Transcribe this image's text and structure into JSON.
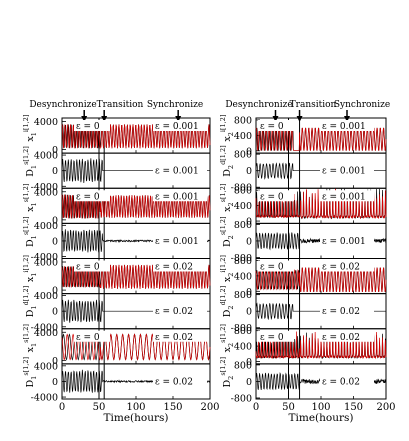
{
  "stage_labels": [
    "Desynchronize",
    "Transition",
    "Synchronize"
  ],
  "colors": {
    "black": "#000000",
    "red": "#d40000"
  },
  "chart_data": [
    {
      "type": "line",
      "x_label": "Time(hours)",
      "x_ticks": [
        0,
        50,
        100,
        150,
        200
      ],
      "xlim": [
        0,
        200
      ],
      "markers": [
        30,
        57,
        157
      ],
      "vlines": [
        50,
        57
      ],
      "panels": [
        {
          "ylabel": "x",
          "ylabel_sup": "i[1,2]",
          "ylabel_sub": "1",
          "eps_left": "ε = 0",
          "eps_right": "ε = 0.001",
          "ylim": [
            -500,
            4500
          ],
          "ticks": [
            0,
            4000
          ],
          "kind": "pair",
          "period": 3.8,
          "amp_before": 1700,
          "amp_after": 1700,
          "center": 1900,
          "t_switch": 52,
          "phase": 0
        },
        {
          "ylabel": "D",
          "ylabel_sup": "s[1,2]",
          "ylabel_sub": "1",
          "eps_left": "",
          "eps_right": "ε = 0.001",
          "ylim": [
            -4500,
            4500
          ],
          "ticks": [
            -4000,
            0,
            4000
          ],
          "kind": "diff",
          "period": 3.8,
          "amp_before": 3200,
          "amp_after": 0,
          "t_switch": 55
        },
        {
          "ylabel": "x",
          "ylabel_sup": "s[1,2]",
          "ylabel_sub": "1",
          "eps_left": "ε = 0",
          "eps_right": "ε = 0.001",
          "ylim": [
            -500,
            4500
          ],
          "ticks": [
            0,
            4000
          ],
          "kind": "pair",
          "period": 3.6,
          "amp_before": 1700,
          "amp_after": 1600,
          "center": 1900,
          "t_switch": 52,
          "phase": 1
        },
        {
          "ylabel": "D",
          "ylabel_sup": "s[1,2]",
          "ylabel_sub": "1",
          "eps_left": "",
          "eps_right": "ε = 0.001",
          "ylim": [
            -4500,
            4500
          ],
          "ticks": [
            -4000,
            0,
            4000
          ],
          "kind": "diff",
          "period": 3.6,
          "amp_before": 3000,
          "amp_after": 250,
          "t_switch": 55
        },
        {
          "ylabel": "x",
          "ylabel_sup": "i[1,2]",
          "ylabel_sub": "1",
          "eps_left": "ε = 0",
          "eps_right": "ε = 0.02",
          "ylim": [
            -500,
            4500
          ],
          "ticks": [
            0,
            4000
          ],
          "kind": "pair",
          "period": 3.8,
          "amp_before": 1500,
          "amp_after": 1700,
          "center": 1900,
          "t_switch": 52,
          "phase": 2
        },
        {
          "ylabel": "D",
          "ylabel_sup": "d[1,2]",
          "ylabel_sub": "1",
          "eps_left": "",
          "eps_right": "ε = 0.02",
          "ylim": [
            -4500,
            4500
          ],
          "ticks": [
            -4000,
            0,
            4000
          ],
          "kind": "diff",
          "period": 3.8,
          "amp_before": 3000,
          "amp_after": 0,
          "t_switch": 55
        },
        {
          "ylabel": "x",
          "ylabel_sup": "s[1,2]",
          "ylabel_sub": "1",
          "eps_left": "ε = 0",
          "eps_right": "ε = 0.02",
          "ylim": [
            -500,
            4500
          ],
          "ticks": [
            0,
            4000
          ],
          "kind": "pair",
          "period": 8,
          "amp_before": 1800,
          "amp_after": 1800,
          "center": 1900,
          "t_switch": 52,
          "phase": 3
        },
        {
          "ylabel": "D",
          "ylabel_sup": "s[1,2]",
          "ylabel_sub": "1",
          "eps_left": "",
          "eps_right": "ε = 0.02",
          "ylim": [
            -4500,
            4500
          ],
          "ticks": [
            -4000,
            0,
            4000
          ],
          "kind": "diff",
          "period": 3.8,
          "amp_before": 3000,
          "amp_after": 250,
          "t_switch": 55
        }
      ]
    },
    {
      "type": "line",
      "x_label": "Time(hours)",
      "x_ticks": [
        0,
        50,
        100,
        150,
        200
      ],
      "xlim": [
        0,
        200
      ],
      "markers": [
        30,
        67,
        140
      ],
      "vlines": [
        50,
        67
      ],
      "panels": [
        {
          "ylabel": "x",
          "ylabel_sup": "i[1,2]",
          "ylabel_sub": "2",
          "eps_left": "ε = 0",
          "eps_right": "ε = 0.001",
          "ylim": [
            -60,
            850
          ],
          "ticks": [
            0,
            400,
            800
          ],
          "kind": "pair",
          "period": 5,
          "amp_before": 300,
          "amp_after": 300,
          "center": 300,
          "t_switch": 67,
          "phase": 0,
          "gap": [
            57,
            67
          ]
        },
        {
          "ylabel": "D",
          "ylabel_sup": "d[1,2]",
          "ylabel_sub": "2",
          "eps_left": "",
          "eps_right": "ε = 0.001",
          "ylim": [
            -850,
            850
          ],
          "ticks": [
            -800,
            0,
            800
          ],
          "kind": "diff",
          "period": 5,
          "amp_before": 400,
          "amp_after": 0,
          "t_switch": 57
        },
        {
          "ylabel": "x",
          "ylabel_sup": "s[1,2]",
          "ylabel_sub": "2",
          "eps_left": "ε = 0",
          "eps_right": "ε = 0.001",
          "ylim": [
            -60,
            850
          ],
          "ticks": [
            0,
            400,
            800
          ],
          "kind": "spiky",
          "period": 4.5,
          "amp_before": 300,
          "amp_after": 350,
          "center": 200,
          "t_switch": 67,
          "phase": 1
        },
        {
          "ylabel": "D",
          "ylabel_sup": "s[1,2]",
          "ylabel_sub": "2",
          "eps_left": "",
          "eps_right": "ε = 0.001",
          "ylim": [
            -850,
            850
          ],
          "ticks": [
            -800,
            0,
            800
          ],
          "kind": "diff",
          "period": 4.5,
          "amp_before": 420,
          "amp_after": 120,
          "t_switch": 67
        },
        {
          "ylabel": "x",
          "ylabel_sup": "i[1,2]",
          "ylabel_sub": "2",
          "eps_left": "ε = 0",
          "eps_right": "ε = 0.02",
          "ylim": [
            -60,
            850
          ],
          "ticks": [
            0,
            400,
            800
          ],
          "kind": "pair",
          "period": 5,
          "amp_before": 250,
          "amp_after": 320,
          "center": 300,
          "t_switch": 67,
          "phase": 2
        },
        {
          "ylabel": "D",
          "ylabel_sup": "d[1,2]",
          "ylabel_sub": "2",
          "eps_left": "",
          "eps_right": "ε = 0.02",
          "ylim": [
            -850,
            850
          ],
          "ticks": [
            -800,
            0,
            800
          ],
          "kind": "diff",
          "period": 5,
          "amp_before": 400,
          "amp_after": 0,
          "t_switch": 57
        },
        {
          "ylabel": "x",
          "ylabel_sup": "s[1,2]",
          "ylabel_sub": "2",
          "eps_left": "ε = 0",
          "eps_right": "ε = 0.02",
          "ylim": [
            -60,
            850
          ],
          "ticks": [
            0,
            400,
            800
          ],
          "kind": "spiky",
          "period": 4.5,
          "amp_before": 300,
          "amp_after": 300,
          "center": 200,
          "t_switch": 67,
          "phase": 3
        },
        {
          "ylabel": "D",
          "ylabel_sup": "s[1,2]",
          "ylabel_sub": "2",
          "eps_left": "",
          "eps_right": "ε = 0.02",
          "ylim": [
            -850,
            850
          ],
          "ticks": [
            -800,
            0,
            800
          ],
          "kind": "diff",
          "period": 4.5,
          "amp_before": 420,
          "amp_after": 120,
          "t_switch": 67
        }
      ]
    }
  ]
}
